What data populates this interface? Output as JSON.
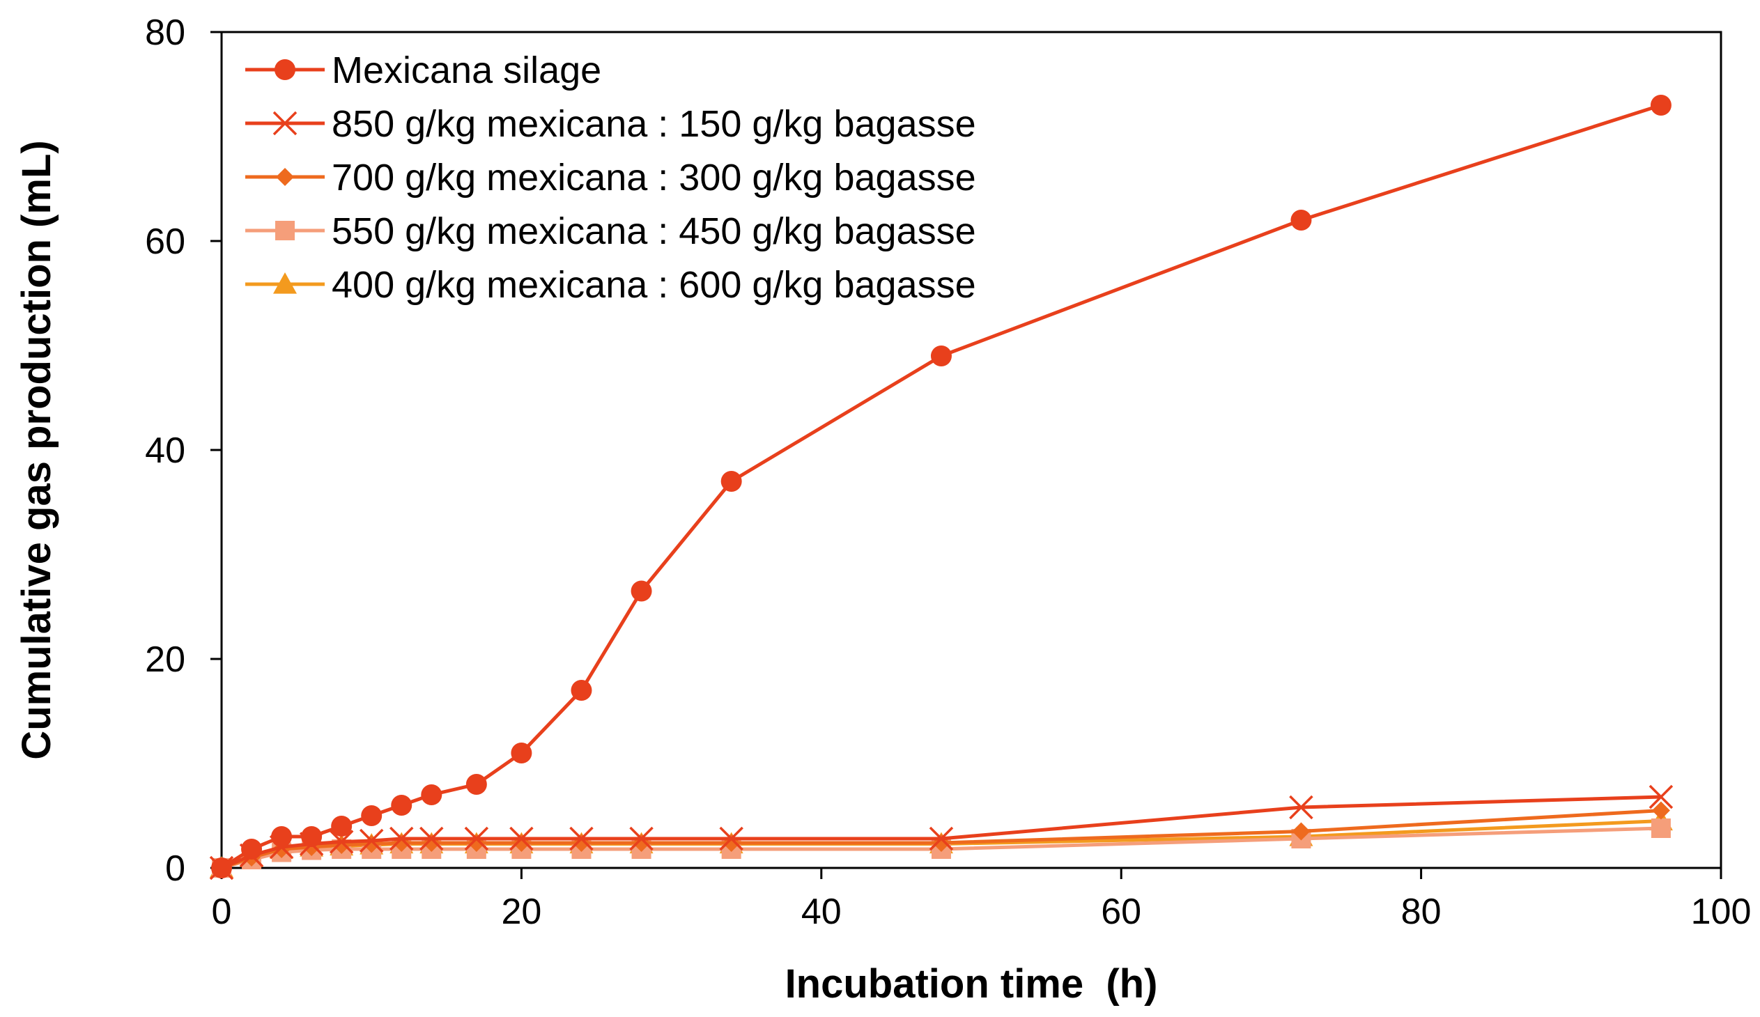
{
  "chart_data": {
    "type": "line",
    "title": "",
    "xlabel": "Incubation time  (h)",
    "ylabel": "Cumulative gas production (mL)",
    "xlim": [
      0,
      100
    ],
    "ylim": [
      0,
      80
    ],
    "xticks": [
      0,
      20,
      40,
      60,
      80,
      100
    ],
    "yticks": [
      0,
      20,
      40,
      60,
      80
    ],
    "grid": false,
    "legend_position": "top-left",
    "series": [
      {
        "name": "Mexicana silage",
        "color": "#E8401C",
        "marker": "circle",
        "x": [
          0,
          2,
          4,
          6,
          8,
          10,
          12,
          14,
          17,
          20,
          24,
          28,
          34,
          48,
          72,
          96
        ],
        "y": [
          0,
          1.8,
          3,
          3,
          4,
          5,
          6,
          7,
          8,
          11,
          17,
          26.5,
          37,
          49,
          62,
          73
        ]
      },
      {
        "name": "850 g/kg mexicana : 150 g/kg  bagasse",
        "color": "#E8401C",
        "marker": "x",
        "x": [
          0,
          2,
          4,
          6,
          8,
          10,
          12,
          14,
          17,
          20,
          24,
          28,
          34,
          48,
          72,
          96
        ],
        "y": [
          0,
          1.2,
          2,
          2.3,
          2.5,
          2.6,
          2.8,
          2.8,
          2.8,
          2.8,
          2.8,
          2.8,
          2.8,
          2.8,
          5.8,
          6.8
        ]
      },
      {
        "name": "700 g/kg  mexicana : 300 g/kg  bagasse",
        "color": "#EE6A1E",
        "marker": "diamond",
        "x": [
          0,
          2,
          4,
          6,
          8,
          10,
          12,
          14,
          17,
          20,
          24,
          28,
          34,
          48,
          72,
          96
        ],
        "y": [
          0,
          1,
          1.8,
          2,
          2.2,
          2.3,
          2.4,
          2.4,
          2.4,
          2.4,
          2.4,
          2.4,
          2.4,
          2.4,
          3.5,
          5.5
        ]
      },
      {
        "name": "550 g/kg  mexicana : 450 g/kg  bagasse",
        "color": "#F59E7A",
        "marker": "square",
        "x": [
          0,
          2,
          4,
          6,
          8,
          10,
          12,
          14,
          17,
          20,
          24,
          28,
          34,
          48,
          72,
          96
        ],
        "y": [
          0,
          0.8,
          1.5,
          1.7,
          1.8,
          1.8,
          1.8,
          1.8,
          1.8,
          1.8,
          1.8,
          1.8,
          1.8,
          1.8,
          2.8,
          3.8
        ]
      },
      {
        "name": "400 g/kg  mexicana : 600 g/kg  bagasse",
        "color": "#F39A1E",
        "marker": "triangle",
        "x": [
          0,
          2,
          4,
          6,
          8,
          10,
          12,
          14,
          17,
          20,
          24,
          28,
          34,
          48,
          72,
          96
        ],
        "y": [
          0,
          1,
          1.8,
          2,
          2.1,
          2.2,
          2.3,
          2.3,
          2.3,
          2.3,
          2.3,
          2.3,
          2.3,
          2.3,
          3,
          4.5
        ]
      }
    ]
  }
}
